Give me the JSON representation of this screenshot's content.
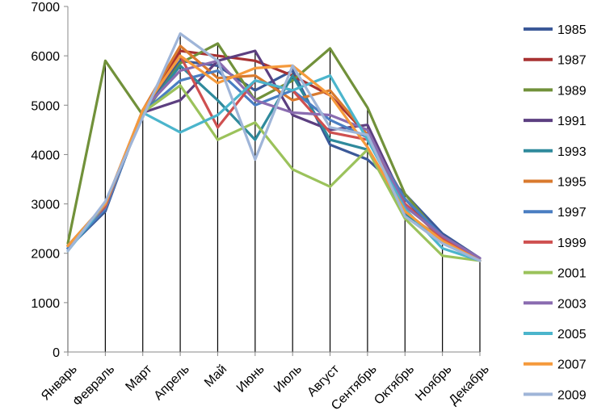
{
  "chart_data": {
    "type": "line",
    "title": "",
    "xlabel": "",
    "ylabel": "",
    "ylim": [
      0,
      7000
    ],
    "yticks": [
      "0",
      "1000",
      "2000",
      "3000",
      "4000",
      "5000",
      "6000",
      "7000"
    ],
    "categories": [
      "Январь",
      "Февраль",
      "Март",
      "Апрель",
      "Май",
      "Июнь",
      "Июль",
      "Август",
      "Сентябрь",
      "Октябрь",
      "Ноябрь",
      "Декабрь"
    ],
    "grid": false,
    "drop_lines": true,
    "legend_position": "right",
    "series": [
      {
        "name": "1985",
        "color": "#3b5998",
        "values": [
          2100,
          2850,
          4900,
          5900,
          5800,
          5300,
          5700,
          4200,
          3900,
          3200,
          2400,
          1900
        ]
      },
      {
        "name": "1987",
        "color": "#a83232",
        "values": [
          2150,
          2900,
          4850,
          6100,
          6000,
          5900,
          5600,
          5200,
          4400,
          3100,
          2300,
          1850
        ]
      },
      {
        "name": "1989",
        "color": "#71913a",
        "values": [
          2200,
          5900,
          4800,
          5850,
          6250,
          5100,
          5500,
          6150,
          4950,
          3200,
          2300,
          1850
        ]
      },
      {
        "name": "1991",
        "color": "#5c3f80",
        "values": [
          2100,
          2950,
          4850,
          5100,
          5900,
          6100,
          4800,
          4500,
          4600,
          3000,
          2350,
          1850
        ]
      },
      {
        "name": "1993",
        "color": "#2f8a9c",
        "values": [
          2100,
          2900,
          4850,
          5800,
          5100,
          4300,
          5600,
          4300,
          4100,
          2800,
          2300,
          1850
        ]
      },
      {
        "name": "1995",
        "color": "#d97a2e",
        "values": [
          2150,
          2950,
          4900,
          6200,
          5550,
          5600,
          5100,
          5300,
          4400,
          3000,
          2300,
          1850
        ]
      },
      {
        "name": "1997",
        "color": "#4a7ec2",
        "values": [
          2100,
          2900,
          4850,
          5500,
          5700,
          5000,
          5300,
          4700,
          4350,
          3100,
          2350,
          1850
        ]
      },
      {
        "name": "1999",
        "color": "#cf5050",
        "values": [
          2150,
          2950,
          4900,
          6000,
          4550,
          5500,
          5300,
          4450,
          4300,
          3000,
          2300,
          1850
        ]
      },
      {
        "name": "2001",
        "color": "#9bc25b",
        "values": [
          2150,
          3000,
          4850,
          5400,
          4300,
          4650,
          3700,
          3350,
          4100,
          2700,
          1950,
          1850
        ]
      },
      {
        "name": "2003",
        "color": "#8a6cb0",
        "values": [
          2150,
          3000,
          4900,
          5700,
          5900,
          5100,
          4850,
          4800,
          4500,
          2950,
          2350,
          1900
        ]
      },
      {
        "name": "2005",
        "color": "#4bb5cc",
        "values": [
          2050,
          3000,
          4850,
          4450,
          4800,
          5500,
          5300,
          5600,
          4300,
          2900,
          2100,
          1850
        ]
      },
      {
        "name": "2007",
        "color": "#f59a3c",
        "values": [
          2150,
          3000,
          4900,
          6000,
          5450,
          5750,
          5800,
          5200,
          4150,
          2850,
          2250,
          1850
        ]
      },
      {
        "name": "2009",
        "color": "#9fb5d8",
        "values": [
          2050,
          3050,
          4750,
          6450,
          5900,
          3900,
          5800,
          4550,
          4400,
          2750,
          2200,
          1850
        ]
      }
    ]
  }
}
